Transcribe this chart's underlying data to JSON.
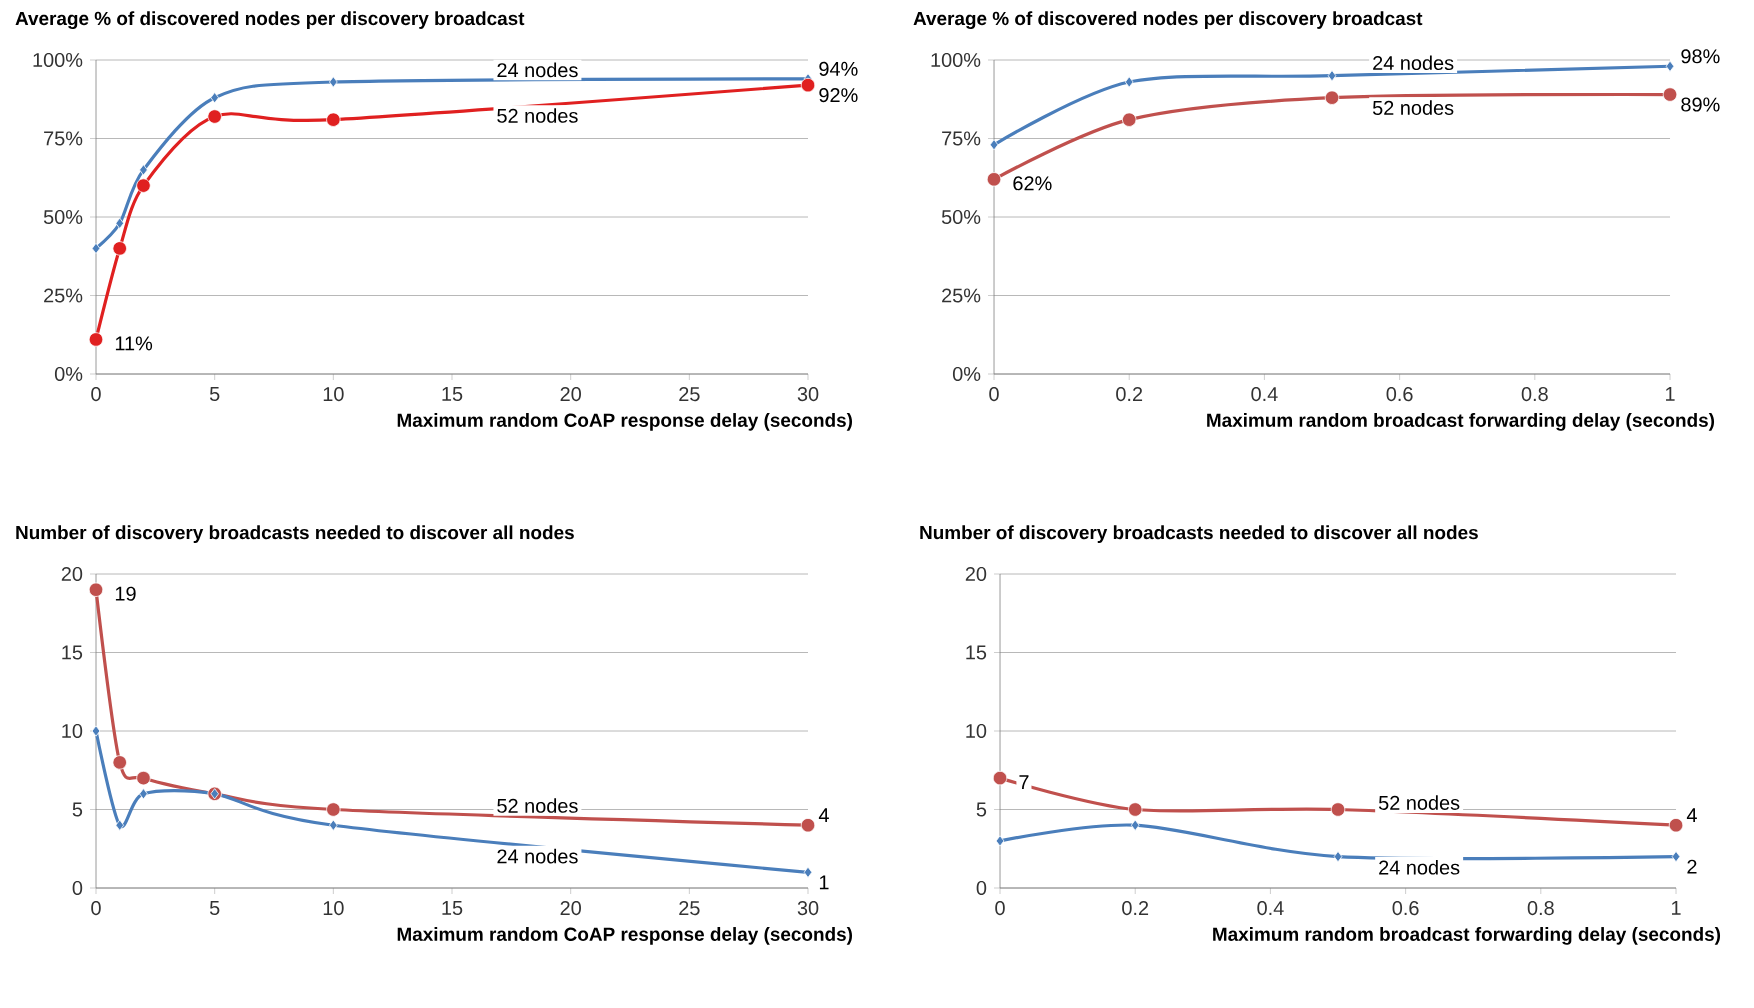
{
  "chart_data": [
    {
      "type": "line",
      "title": "Average % of discovered nodes per discovery broadcast",
      "xlabel": "Maximum random CoAP response delay (seconds)",
      "x": [
        0,
        1,
        2,
        5,
        10,
        30
      ],
      "xlim": [
        0,
        30
      ],
      "xticks": [
        0,
        5,
        10,
        15,
        20,
        25,
        30
      ],
      "ylim": [
        0,
        100
      ],
      "yticks": [
        {
          "value": 0,
          "label": "0%"
        },
        {
          "value": 25,
          "label": "25%"
        },
        {
          "value": 50,
          "label": "50%"
        },
        {
          "value": 75,
          "label": "75%"
        },
        {
          "value": 100,
          "label": "100%"
        }
      ],
      "grid": "y",
      "series": [
        {
          "name": "24 nodes",
          "color": "#4a7ebb",
          "marker": "diamond",
          "values": [
            40,
            48,
            65,
            88,
            93,
            94
          ],
          "value_labels": [
            null,
            null,
            null,
            null,
            null,
            "94%"
          ]
        },
        {
          "name": "52 nodes",
          "color": "#e02020",
          "marker": "circle",
          "values": [
            11,
            40,
            60,
            82,
            81,
            92
          ],
          "value_labels": [
            "11%",
            null,
            null,
            null,
            null,
            "92%"
          ]
        }
      ]
    },
    {
      "type": "line",
      "title": "Average % of discovered nodes per discovery broadcast",
      "xlabel": "Maximum random broadcast forwarding delay (seconds)",
      "x": [
        0,
        0.2,
        0.5,
        1
      ],
      "xlim": [
        0,
        1
      ],
      "xticks": [
        0,
        0.2,
        0.4,
        0.6,
        0.8,
        1
      ],
      "ylim": [
        0,
        100
      ],
      "yticks": [
        {
          "value": 0,
          "label": "0%"
        },
        {
          "value": 25,
          "label": "25%"
        },
        {
          "value": 50,
          "label": "50%"
        },
        {
          "value": 75,
          "label": "75%"
        },
        {
          "value": 100,
          "label": "100%"
        }
      ],
      "grid": "y",
      "series": [
        {
          "name": "24 nodes",
          "color": "#4a7ebb",
          "marker": "diamond",
          "values": [
            73,
            93,
            95,
            98
          ],
          "value_labels": [
            null,
            null,
            null,
            "98%"
          ]
        },
        {
          "name": "52 nodes",
          "color": "#c0504d",
          "marker": "circle",
          "values": [
            62,
            81,
            88,
            89
          ],
          "value_labels": [
            "62%",
            null,
            null,
            "89%"
          ]
        }
      ]
    },
    {
      "type": "line",
      "title": "Number of discovery broadcasts needed to discover all nodes",
      "xlabel": "Maximum random CoAP response delay (seconds)",
      "x": [
        0,
        1,
        2,
        5,
        10,
        30
      ],
      "xlim": [
        0,
        30
      ],
      "xticks": [
        0,
        5,
        10,
        15,
        20,
        25,
        30
      ],
      "ylim": [
        0,
        20
      ],
      "yticks": [
        0,
        5,
        10,
        15,
        20
      ],
      "grid": "y",
      "series": [
        {
          "name": "52 nodes",
          "color": "#c0504d",
          "marker": "circle",
          "values": [
            19,
            8,
            7,
            6,
            5,
            4
          ],
          "value_labels": [
            "19",
            null,
            null,
            null,
            null,
            "4"
          ]
        },
        {
          "name": "24 nodes",
          "color": "#4a7ebb",
          "marker": "diamond",
          "values": [
            10,
            4,
            6,
            6,
            4,
            1
          ],
          "value_labels": [
            null,
            null,
            null,
            null,
            null,
            "1"
          ]
        }
      ]
    },
    {
      "type": "line",
      "title": "Number of discovery broadcasts needed to discover all nodes",
      "xlabel": "Maximum random broadcast forwarding delay (seconds)",
      "x": [
        0,
        0.2,
        0.5,
        1
      ],
      "xlim": [
        0,
        1
      ],
      "xticks": [
        0,
        0.2,
        0.4,
        0.6,
        0.8,
        1
      ],
      "ylim": [
        0,
        20
      ],
      "yticks": [
        0,
        5,
        10,
        15,
        20
      ],
      "grid": "y",
      "series": [
        {
          "name": "52 nodes",
          "color": "#c0504d",
          "marker": "circle",
          "values": [
            7,
            5,
            5,
            4
          ],
          "value_labels": [
            "7",
            null,
            null,
            "4"
          ]
        },
        {
          "name": "24 nodes",
          "color": "#4a7ebb",
          "marker": "diamond",
          "values": [
            3,
            4,
            2,
            2
          ],
          "value_labels": [
            null,
            null,
            null,
            "2"
          ]
        }
      ]
    }
  ]
}
